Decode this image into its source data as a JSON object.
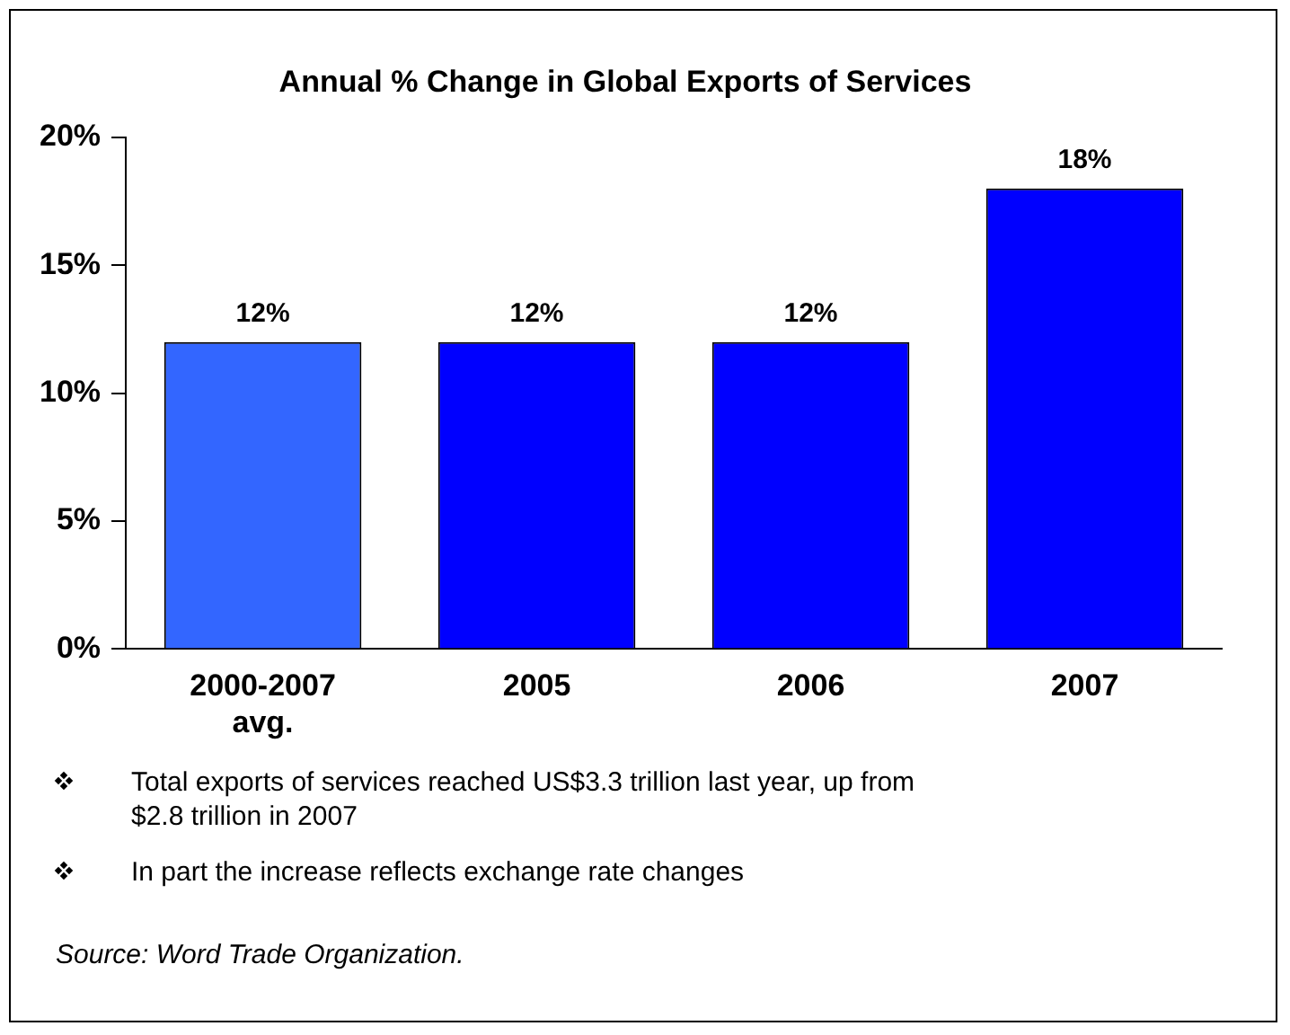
{
  "chart_data": {
    "type": "bar",
    "title": "Annual % Change in Global Exports of Services",
    "categories": [
      "2000-2007 avg.",
      "2005",
      "2006",
      "2007"
    ],
    "values": [
      12,
      12,
      12,
      18
    ],
    "colors": [
      "#3366ff",
      "#0000ff",
      "#0000ff",
      "#0000ff"
    ],
    "value_labels": [
      "12%",
      "12%",
      "12%",
      "18%"
    ],
    "ylim": [
      0,
      20
    ],
    "yticks": [
      {
        "value": 0,
        "label": "0%"
      },
      {
        "value": 5,
        "label": "5%"
      },
      {
        "value": 10,
        "label": "10%"
      },
      {
        "value": 15,
        "label": "15%"
      },
      {
        "value": 20,
        "label": "20%"
      }
    ],
    "grid": false,
    "legend": false,
    "annotations": [
      "Total exports of services reached US$3.3 trillion last year, up from $2.8 trillion in 2007",
      "In part the increase reflects exchange rate changes",
      "Source:  Word Trade Organization."
    ]
  }
}
